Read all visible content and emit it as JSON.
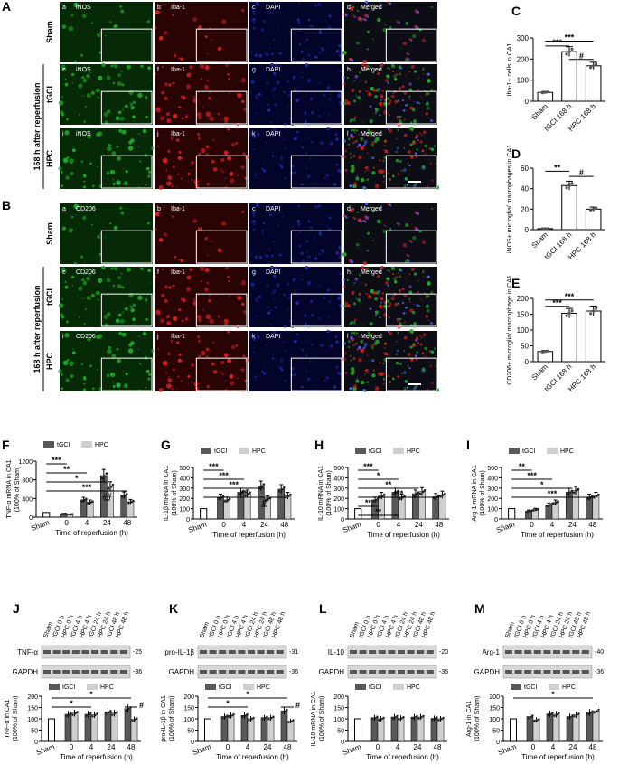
{
  "micrograph_labels": {
    "A": {
      "rows": [
        "Sham",
        "tGCI",
        "HPC"
      ],
      "group_label": "168 h after reperfusion",
      "cols": [
        [
          "a",
          "iNOS"
        ],
        [
          "b",
          "Iba-1"
        ],
        [
          "c",
          "DAPI"
        ],
        [
          "d",
          "Merged"
        ],
        [
          "e",
          "iNOS"
        ],
        [
          "f",
          "Iba-1"
        ],
        [
          "g",
          "DAPI"
        ],
        [
          "h",
          "Merged"
        ],
        [
          "i",
          "iNOS"
        ],
        [
          "j",
          "Iba-1"
        ],
        [
          "k",
          "DAPI"
        ],
        [
          "l",
          "Merged"
        ]
      ]
    },
    "B": {
      "rows": [
        "Sham",
        "tGCI",
        "HPC"
      ],
      "group_label": "168 h after reperfusion",
      "cols": [
        [
          "a",
          "CD206"
        ],
        [
          "b",
          "Iba-1"
        ],
        [
          "c",
          "DAPI"
        ],
        [
          "d",
          "Merged"
        ],
        [
          "e",
          "CD206"
        ],
        [
          "f",
          "Iba-1"
        ],
        [
          "g",
          "DAPI"
        ],
        [
          "h",
          "Merged"
        ],
        [
          "i",
          "CD206"
        ],
        [
          "j",
          "Iba-1"
        ],
        [
          "k",
          "DAPI"
        ],
        [
          "l",
          "Merged"
        ]
      ]
    }
  },
  "colors": {
    "green": "#1fa82a",
    "red": "#d42020",
    "blue": "#1e2aa8",
    "tGCI": "#595959",
    "HPC": "#cfcfcf"
  },
  "chart_data": [
    {
      "panel": "C",
      "type": "bar",
      "categories": [
        "Sham",
        "tGCI 168 h",
        "HPC 168 h"
      ],
      "values": [
        42,
        235,
        168
      ],
      "ylabel": "Iba-1+ cells in CA1",
      "ylim": [
        0,
        300
      ],
      "yticks": [
        0,
        100,
        200,
        300
      ],
      "sig": [
        "***",
        "***",
        "#"
      ]
    },
    {
      "panel": "D",
      "type": "bar",
      "categories": [
        "Sham",
        "tGCI 168 h",
        "HPC 168 h"
      ],
      "values": [
        1,
        43,
        20
      ],
      "ylabel": "iNOS+ microglia/ macrophages in CA1",
      "ylim": [
        0,
        60
      ],
      "yticks": [
        0,
        20,
        40,
        60
      ],
      "sig": [
        "**",
        "#"
      ]
    },
    {
      "panel": "E",
      "type": "bar",
      "categories": [
        "Sham",
        "tGCI 168 h",
        "HPC 168 h"
      ],
      "values": [
        32,
        153,
        160
      ],
      "ylabel": "CD206+ microglia/ macrophage in CA1",
      "ylim": [
        0,
        200
      ],
      "yticks": [
        0,
        50,
        100,
        150,
        200
      ],
      "sig": [
        "***",
        "***"
      ]
    },
    {
      "panel": "F",
      "type": "bar",
      "legend": [
        "tGCI",
        "HPC"
      ],
      "x": [
        "0",
        "4",
        "24",
        "48"
      ],
      "sham": 100,
      "tGCI": [
        70,
        370,
        890,
        470
      ],
      "HPC": [
        60,
        320,
        660,
        330
      ],
      "ylabel": "TNF-α mRNA in CA1 (100% of Sham)",
      "xlabel": "Time of reperfusion (h)",
      "ylim": [
        0,
        1200
      ],
      "yticks": [
        0,
        400,
        800,
        1200
      ],
      "sig": [
        "***",
        "**",
        "*",
        "***",
        "##"
      ]
    },
    {
      "panel": "G",
      "type": "bar",
      "legend": [
        "tGCI",
        "HPC"
      ],
      "x": [
        "0",
        "4",
        "24",
        "48"
      ],
      "sham": 100,
      "tGCI": [
        210,
        260,
        320,
        290
      ],
      "HPC": [
        185,
        245,
        195,
        225
      ],
      "ylabel": "IL-1β mRNA in CA1 (100% of Sham)",
      "xlabel": "Time of reperfusion (h)",
      "ylim": [
        0,
        500
      ],
      "yticks": [
        0,
        100,
        200,
        300,
        400,
        500
      ],
      "sig": [
        "***",
        "***",
        "***",
        "**",
        "#"
      ]
    },
    {
      "panel": "H",
      "type": "bar",
      "legend": [
        "tGCI",
        "HPC"
      ],
      "x": [
        "0",
        "4",
        "24",
        "48"
      ],
      "sham": 100,
      "tGCI": [
        185,
        260,
        245,
        215
      ],
      "HPC": [
        225,
        210,
        265,
        235
      ],
      "ylabel": "IL-10 mRNA in CA1 (100% of Sham)",
      "xlabel": "Time of reperfusion (h)",
      "ylim": [
        0,
        500
      ],
      "yticks": [
        0,
        100,
        200,
        300,
        400,
        500
      ],
      "sig": [
        "***",
        "*",
        "**",
        "***",
        "**",
        "**"
      ]
    },
    {
      "panel": "I",
      "type": "bar",
      "legend": [
        "tGCI",
        "HPC"
      ],
      "x": [
        "0",
        "4",
        "24",
        "48"
      ],
      "sham": 100,
      "tGCI": [
        75,
        135,
        260,
        210
      ],
      "HPC": [
        90,
        160,
        275,
        225
      ],
      "ylabel": "Arg-1 mRNA in CA1 (100% of Sham)",
      "xlabel": "Time of reperfusion (h)",
      "ylim": [
        0,
        500
      ],
      "yticks": [
        0,
        100,
        200,
        300,
        400,
        500
      ],
      "sig": [
        "**",
        "***",
        "*",
        "***"
      ]
    },
    {
      "panel": "J",
      "type": "bar",
      "blot": [
        "TNF-α",
        "GAPDH"
      ],
      "kda": [
        "25",
        "36"
      ],
      "legend": [
        "tGCI",
        "HPC"
      ],
      "x": [
        "0",
        "4",
        "24",
        "48"
      ],
      "sham": 100,
      "tGCI": [
        120,
        120,
        130,
        145
      ],
      "HPC": [
        125,
        118,
        125,
        98
      ],
      "ylabel": "TNF-α in CA1 (100% of Sham)",
      "xlabel": "Time of reperfusion (h)",
      "ylim": [
        0,
        200
      ],
      "yticks": [
        0,
        50,
        100,
        150,
        200
      ],
      "sig": [
        "*",
        "*",
        "#"
      ]
    },
    {
      "panel": "K",
      "type": "bar",
      "blot": [
        "pro-IL-1β",
        "GAPDH"
      ],
      "kda": [
        "31",
        "36"
      ],
      "legend": [
        "tGCI",
        "HPC"
      ],
      "x": [
        "0",
        "4",
        "24",
        "48"
      ],
      "sham": 100,
      "tGCI": [
        110,
        115,
        105,
        135
      ],
      "HPC": [
        115,
        100,
        105,
        90
      ],
      "ylabel": "pro-IL-1β in CA1 (100% of Sham)",
      "xlabel": "Time of reperfusion (h)",
      "ylim": [
        0,
        200
      ],
      "yticks": [
        0,
        50,
        100,
        150,
        200
      ],
      "sig": [
        "*",
        "*",
        "#"
      ]
    },
    {
      "panel": "L",
      "type": "bar",
      "blot": [
        "IL-10",
        "GAPDH"
      ],
      "kda": [
        "20",
        "36"
      ],
      "legend": [
        "tGCI",
        "HPC"
      ],
      "x": [
        "0",
        "4",
        "24",
        "48"
      ],
      "sham": 100,
      "tGCI": [
        105,
        108,
        108,
        102
      ],
      "HPC": [
        100,
        103,
        108,
        100
      ],
      "ylabel": "IL-10 mRNA in CA1 (100% of Sham)",
      "xlabel": "Time of reperfusion (h)",
      "ylim": [
        0,
        200
      ],
      "yticks": [
        0,
        50,
        100,
        150,
        200
      ],
      "sig": []
    },
    {
      "panel": "M",
      "type": "bar",
      "blot": [
        "Arg-1",
        "GAPDH"
      ],
      "kda": [
        "40",
        "36"
      ],
      "legend": [
        "tGCI",
        "HPC"
      ],
      "x": [
        "0",
        "4",
        "24",
        "48"
      ],
      "sham": 100,
      "tGCI": [
        110,
        122,
        110,
        128
      ],
      "HPC": [
        95,
        120,
        118,
        135
      ],
      "ylabel": "Arg-1 in CA1 (100% of Sham)",
      "xlabel": "Time of reperfusion (h)",
      "ylim": [
        0,
        200
      ],
      "yticks": [
        0,
        50,
        100,
        150,
        200
      ],
      "sig": [
        "*"
      ]
    }
  ],
  "blot_lanes": [
    "Sham",
    "tGCI 0 h",
    "HPC 0 h",
    "tGCI 4 h",
    "HPC 4 h",
    "tGCI 24 h",
    "HPC 24 h",
    "tGCI 48 h",
    "HPC 48 h"
  ]
}
